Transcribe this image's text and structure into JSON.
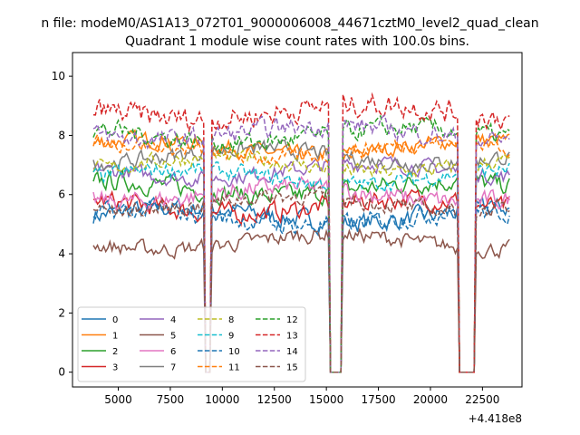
{
  "chart_data": {
    "type": "line",
    "suptitle": "n file: modeM0/AS1A13_072T01_9000006008_44671cztM0_level2_quad_clean",
    "title": "Quadrant 1 module wise count rates with 100.0s bins.",
    "xlabel": "",
    "ylabel": "",
    "x_offset_label": "+4.418e8",
    "xlim": [
      2800,
      24400
    ],
    "ylim": [
      -0.5,
      10.8
    ],
    "x_ticks": [
      5000,
      7500,
      10000,
      12500,
      15000,
      17500,
      20000,
      22500
    ],
    "x_tick_labels": [
      "5000",
      "7500",
      "10000",
      "12500",
      "15000",
      "17500",
      "20000",
      "22500"
    ],
    "y_ticks": [
      0,
      2,
      4,
      6,
      8,
      10
    ],
    "y_tick_labels": [
      "0",
      "2",
      "4",
      "6",
      "8",
      "10"
    ],
    "x_start": 3800,
    "x_end": 23800,
    "x_step": 100,
    "gaps": [
      [
        9150,
        9450
      ],
      [
        15200,
        15700
      ],
      [
        21400,
        22100
      ]
    ],
    "legend": {
      "location": "lower-left",
      "columns": 4
    },
    "series": [
      {
        "name": "0",
        "color": "#1f77b4",
        "linestyle": "solid",
        "level": 5.3,
        "noise": 0.25
      },
      {
        "name": "1",
        "color": "#ff7f0e",
        "linestyle": "solid",
        "level": 7.6,
        "noise": 0.2
      },
      {
        "name": "2",
        "color": "#2ca02c",
        "linestyle": "solid",
        "level": 6.2,
        "noise": 0.25
      },
      {
        "name": "3",
        "color": "#d62728",
        "linestyle": "solid",
        "level": 5.6,
        "noise": 0.25
      },
      {
        "name": "4",
        "color": "#9467bd",
        "linestyle": "solid",
        "level": 6.8,
        "noise": 0.2
      },
      {
        "name": "5",
        "color": "#8c564b",
        "linestyle": "solid",
        "level": 4.4,
        "noise": 0.2
      },
      {
        "name": "6",
        "color": "#e377c2",
        "linestyle": "solid",
        "level": 6.0,
        "noise": 0.25
      },
      {
        "name": "7",
        "color": "#7f7f7f",
        "linestyle": "solid",
        "level": 7.3,
        "noise": 0.2
      },
      {
        "name": "8",
        "color": "#bcbd22",
        "linestyle": "dashed",
        "level": 7.0,
        "noise": 0.2
      },
      {
        "name": "9",
        "color": "#17becf",
        "linestyle": "dashed",
        "level": 6.6,
        "noise": 0.2
      },
      {
        "name": "10",
        "color": "#1f77b4",
        "linestyle": "dashed",
        "level": 5.2,
        "noise": 0.25
      },
      {
        "name": "11",
        "color": "#ff7f0e",
        "linestyle": "dashed",
        "level": 7.5,
        "noise": 0.2
      },
      {
        "name": "12",
        "color": "#2ca02c",
        "linestyle": "dashed",
        "level": 8.0,
        "noise": 0.25
      },
      {
        "name": "13",
        "color": "#d62728",
        "linestyle": "dashed",
        "level": 8.8,
        "noise": 0.3
      },
      {
        "name": "14",
        "color": "#9467bd",
        "linestyle": "dashed",
        "level": 8.1,
        "noise": 0.25
      },
      {
        "name": "15",
        "color": "#8c564b",
        "linestyle": "dashed",
        "level": 5.7,
        "noise": 0.2
      }
    ]
  }
}
